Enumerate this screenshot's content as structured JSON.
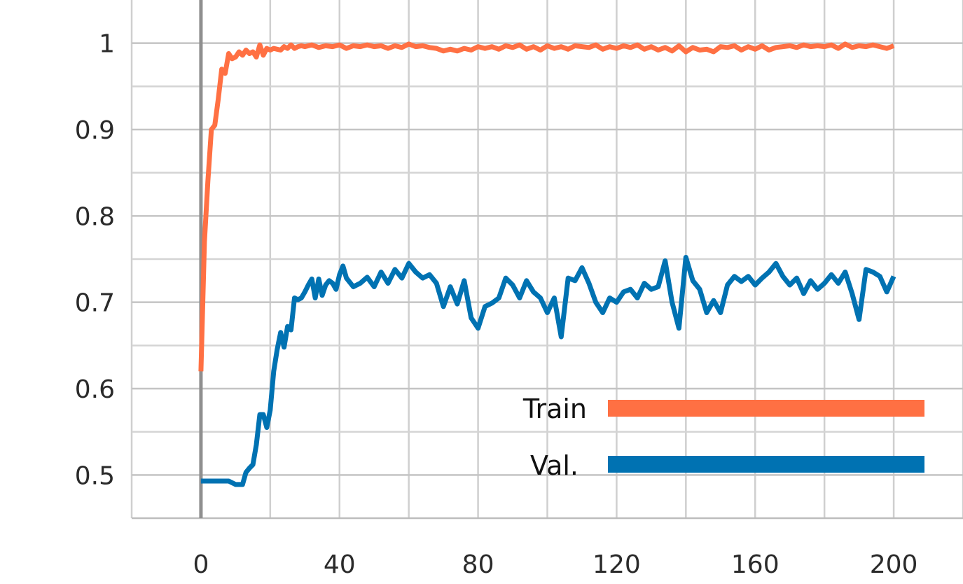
{
  "chart_data": {
    "type": "line",
    "title": "",
    "xlabel": "",
    "ylabel": "",
    "xlim": [
      -20,
      220
    ],
    "ylim": [
      0.45,
      1.05
    ],
    "x_ticks": [
      0,
      40,
      80,
      120,
      160,
      200
    ],
    "x_tick_labels": [
      "0",
      "40",
      "80",
      "120",
      "160",
      "200"
    ],
    "y_ticks": [
      0.5,
      0.6,
      0.7,
      0.8,
      0.9,
      1.0
    ],
    "y_tick_labels": [
      "0.5",
      "0.6",
      "0.7",
      "0.8",
      "0.9",
      "1"
    ],
    "grid": true,
    "legend_position": "bottom-right",
    "series": [
      {
        "name": "Train",
        "color": "#ff7043",
        "x": [
          0,
          1,
          2,
          3,
          4,
          5,
          6,
          7,
          8,
          9,
          10,
          11,
          12,
          13,
          14,
          15,
          16,
          17,
          18,
          19,
          20,
          21,
          22,
          23,
          24,
          25,
          26,
          27,
          28,
          29,
          30,
          32,
          34,
          36,
          38,
          40,
          42,
          44,
          46,
          48,
          50,
          52,
          54,
          56,
          58,
          60,
          62,
          64,
          66,
          68,
          70,
          72,
          74,
          76,
          78,
          80,
          82,
          84,
          86,
          88,
          90,
          92,
          94,
          96,
          98,
          100,
          102,
          104,
          106,
          108,
          110,
          112,
          114,
          116,
          118,
          120,
          122,
          124,
          126,
          128,
          130,
          132,
          134,
          136,
          138,
          140,
          142,
          144,
          146,
          148,
          150,
          152,
          154,
          156,
          158,
          160,
          162,
          164,
          166,
          168,
          170,
          172,
          174,
          176,
          178,
          180,
          182,
          184,
          186,
          188,
          190,
          192,
          194,
          196,
          198,
          200
        ],
        "values": [
          0.62,
          0.77,
          0.84,
          0.9,
          0.905,
          0.935,
          0.97,
          0.965,
          0.988,
          0.982,
          0.984,
          0.99,
          0.986,
          0.992,
          0.988,
          0.99,
          0.984,
          0.998,
          0.986,
          0.994,
          0.992,
          0.994,
          0.993,
          0.992,
          0.996,
          0.994,
          0.998,
          0.994,
          0.996,
          0.997,
          0.996,
          0.998,
          0.995,
          0.997,
          0.996,
          0.998,
          0.994,
          0.997,
          0.996,
          0.998,
          0.996,
          0.997,
          0.994,
          0.997,
          0.995,
          0.999,
          0.996,
          0.997,
          0.995,
          0.994,
          0.991,
          0.993,
          0.991,
          0.994,
          0.992,
          0.996,
          0.994,
          0.996,
          0.993,
          0.997,
          0.995,
          0.998,
          0.993,
          0.996,
          0.992,
          0.997,
          0.994,
          0.996,
          0.993,
          0.997,
          0.996,
          0.995,
          0.998,
          0.993,
          0.996,
          0.994,
          0.997,
          0.995,
          0.998,
          0.993,
          0.996,
          0.992,
          0.995,
          0.991,
          0.997,
          0.99,
          0.995,
          0.992,
          0.993,
          0.99,
          0.996,
          0.995,
          0.997,
          0.992,
          0.996,
          0.993,
          0.997,
          0.992,
          0.995,
          0.996,
          0.997,
          0.995,
          0.998,
          0.996,
          0.997,
          0.996,
          0.998,
          0.994,
          0.999,
          0.995,
          0.997,
          0.996,
          0.998,
          0.996,
          0.994,
          0.997
        ]
      },
      {
        "name": "Val.",
        "color": "#0072b2",
        "x": [
          0,
          2,
          4,
          6,
          8,
          10,
          12,
          13,
          14,
          15,
          16,
          17,
          18,
          19,
          20,
          21,
          22,
          23,
          24,
          25,
          26,
          27,
          28,
          29,
          30,
          31,
          32,
          33,
          34,
          35,
          36,
          37,
          38,
          39,
          40,
          41,
          42,
          44,
          46,
          48,
          50,
          52,
          54,
          56,
          58,
          60,
          62,
          64,
          66,
          68,
          70,
          72,
          74,
          76,
          78,
          80,
          82,
          84,
          86,
          88,
          90,
          92,
          94,
          96,
          98,
          100,
          102,
          104,
          106,
          108,
          110,
          112,
          114,
          116,
          118,
          120,
          122,
          124,
          126,
          128,
          130,
          132,
          134,
          136,
          138,
          140,
          142,
          144,
          146,
          148,
          150,
          152,
          154,
          156,
          158,
          160,
          162,
          164,
          166,
          168,
          170,
          172,
          174,
          176,
          178,
          180,
          182,
          184,
          186,
          188,
          190,
          192,
          194,
          196,
          198,
          200
        ],
        "values": [
          0.493,
          0.493,
          0.493,
          0.493,
          0.493,
          0.489,
          0.489,
          0.503,
          0.508,
          0.512,
          0.535,
          0.57,
          0.57,
          0.555,
          0.575,
          0.62,
          0.645,
          0.665,
          0.648,
          0.672,
          0.668,
          0.705,
          0.703,
          0.705,
          0.712,
          0.72,
          0.727,
          0.705,
          0.727,
          0.708,
          0.72,
          0.725,
          0.722,
          0.715,
          0.732,
          0.742,
          0.728,
          0.718,
          0.722,
          0.729,
          0.718,
          0.735,
          0.722,
          0.738,
          0.728,
          0.745,
          0.735,
          0.728,
          0.732,
          0.722,
          0.695,
          0.718,
          0.698,
          0.725,
          0.682,
          0.67,
          0.695,
          0.699,
          0.705,
          0.728,
          0.72,
          0.705,
          0.725,
          0.712,
          0.705,
          0.688,
          0.705,
          0.66,
          0.728,
          0.725,
          0.74,
          0.722,
          0.7,
          0.688,
          0.705,
          0.7,
          0.712,
          0.715,
          0.705,
          0.722,
          0.715,
          0.718,
          0.748,
          0.7,
          0.67,
          0.752,
          0.725,
          0.715,
          0.688,
          0.702,
          0.688,
          0.72,
          0.73,
          0.724,
          0.73,
          0.72,
          0.728,
          0.735,
          0.745,
          0.73,
          0.72,
          0.728,
          0.71,
          0.725,
          0.715,
          0.722,
          0.732,
          0.722,
          0.735,
          0.71,
          0.68,
          0.738,
          0.735,
          0.73,
          0.712,
          0.73
        ]
      }
    ]
  }
}
